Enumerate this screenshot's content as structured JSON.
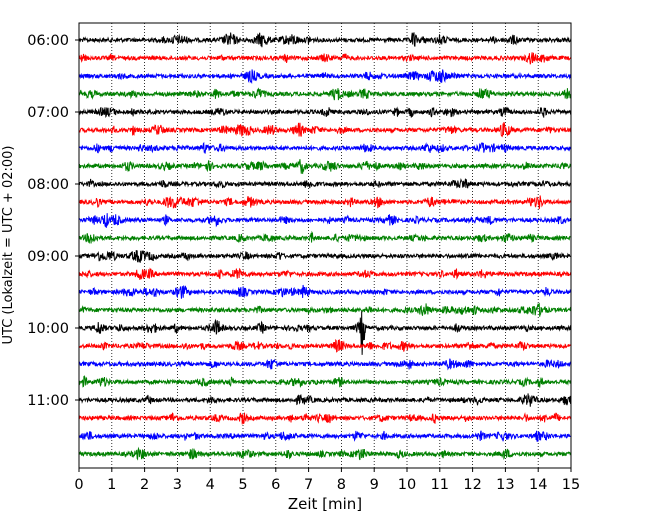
{
  "chart_data": {
    "type": "line",
    "title": "",
    "xlabel": "Zeit  [min]",
    "ylabel": "UTC (Lokalzeit = UTC + 02:00)",
    "xlim": [
      0,
      15
    ],
    "xticks": [
      0,
      1,
      2,
      3,
      4,
      5,
      6,
      7,
      8,
      9,
      10,
      11,
      12,
      13,
      14,
      15
    ],
    "x_grid": "dotted vertical lines at each minute",
    "y_tick_labels": [
      "06:00",
      "07:00",
      "08:00",
      "09:00",
      "10:00",
      "11:00"
    ],
    "trace_interval_minutes": 15,
    "trace_start_times": [
      "06:00",
      "06:15",
      "06:30",
      "06:45",
      "07:00",
      "07:15",
      "07:30",
      "07:45",
      "08:00",
      "08:15",
      "08:30",
      "08:45",
      "09:00",
      "09:15",
      "09:30",
      "09:45",
      "10:00",
      "10:15",
      "10:30",
      "10:45",
      "11:00",
      "11:15",
      "11:30",
      "11:45"
    ],
    "trace_color_cycle": [
      "#000000",
      "#ff0000",
      "#0000ff",
      "#008000"
    ],
    "notable_events": [
      {
        "trace": "06:00",
        "minute": 10.2,
        "amplitude": "small"
      },
      {
        "trace": "10:00",
        "minute": 8.65,
        "amplitude": "large"
      }
    ]
  }
}
